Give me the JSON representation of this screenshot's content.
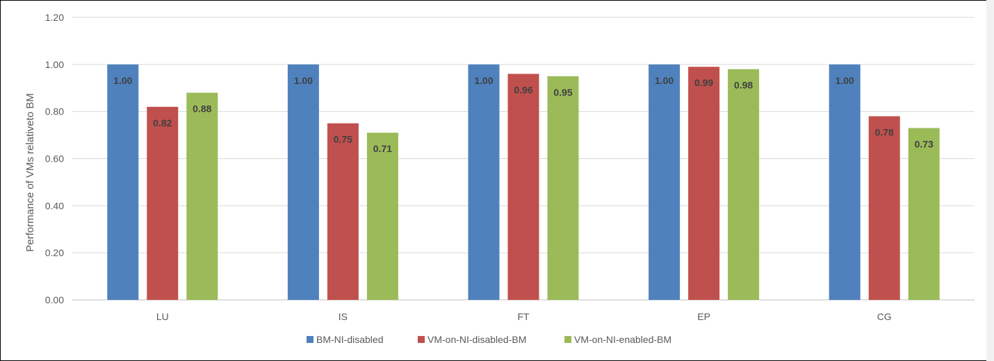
{
  "chart_data": {
    "type": "bar",
    "categories": [
      "LU",
      "IS",
      "FT",
      "EP",
      "CG"
    ],
    "series": [
      {
        "name": "BM-NI-disabled",
        "color": "#4f81bd",
        "values": [
          1.0,
          1.0,
          1.0,
          1.0,
          1.0
        ],
        "labels": [
          "1.00",
          "1.00",
          "1.00",
          "1.00",
          "1.00"
        ]
      },
      {
        "name": "VM-on-NI-disabled-BM",
        "color": "#c0504d",
        "values": [
          0.82,
          0.75,
          0.96,
          0.99,
          0.78
        ],
        "labels": [
          "0.82",
          "0.75",
          "0.96",
          "0.99",
          "0.78"
        ]
      },
      {
        "name": "VM-on-NI-enabled-BM",
        "color": "#9bbb59",
        "values": [
          0.88,
          0.71,
          0.95,
          0.98,
          0.73
        ],
        "labels": [
          "0.88",
          "0.71",
          "0.95",
          "0.98",
          "0.73"
        ]
      }
    ],
    "title": "",
    "xlabel": "",
    "ylabel": "Performance of VMs relativeto BM",
    "ylim": [
      0,
      1.2
    ],
    "yticks": [
      "0.00",
      "0.20",
      "0.40",
      "0.60",
      "0.80",
      "1.00",
      "1.20"
    ],
    "grid": true,
    "legend_position": "bottom"
  }
}
